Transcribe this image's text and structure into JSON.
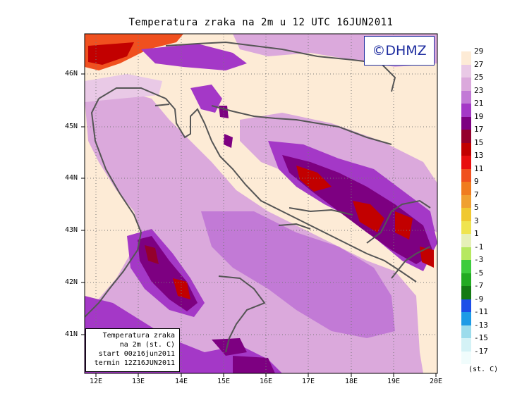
{
  "title": "Temperatura zraka na 2m u 12 UTC 16JUN2011",
  "badge": "©DHMZ",
  "info": {
    "line1": "Temperatura zraka",
    "line2": "na 2m (st. C)",
    "line3": "start 00z16jun2011",
    "line4": "termin 12Z16JUN2011"
  },
  "lat_labels": [
    "46N",
    "45N",
    "44N",
    "43N",
    "42N",
    "41N"
  ],
  "lon_labels": [
    "12E",
    "13E",
    "14E",
    "15E",
    "16E",
    "17E",
    "18E",
    "19E",
    "20E"
  ],
  "legend": {
    "labels": [
      "29",
      "27",
      "25",
      "23",
      "21",
      "19",
      "17",
      "15",
      "13",
      "11",
      "9",
      "7",
      "5",
      "3",
      "1",
      "-1",
      "-3",
      "-5",
      "-7",
      "-9",
      "-11",
      "-13",
      "-15",
      "-17"
    ],
    "colors": [
      "#fdebd6",
      "#e9c9e6",
      "#dba9dc",
      "#c27ad6",
      "#a438c7",
      "#7d0081",
      "#94002c",
      "#c20000",
      "#e80f0f",
      "#f0501f",
      "#f07c1f",
      "#f0a030",
      "#f0c830",
      "#efe450",
      "#e6f0b8",
      "#b6e860",
      "#3ecc3e",
      "#22aa22",
      "#147a14",
      "#1d4fe8",
      "#1e9be6",
      "#9cdcec",
      "#d4f2f6",
      "#f0fcfc"
    ],
    "units": "(st. C)"
  },
  "colors": {
    "frame": "#000000",
    "coast": "#555555",
    "badge": "#1f2ea0"
  }
}
